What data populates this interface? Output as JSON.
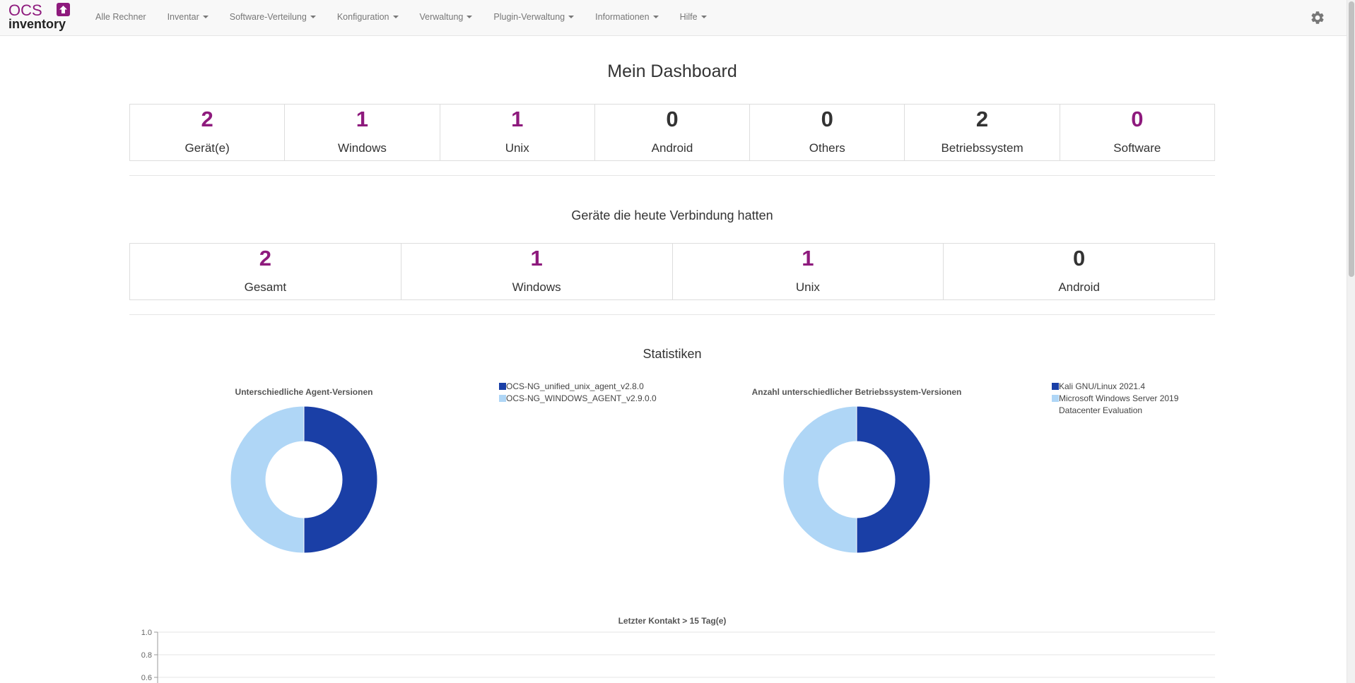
{
  "nav": {
    "logo_ocs": "OCS",
    "logo_inventory": "inventory",
    "items": [
      {
        "label": "Alle Rechner",
        "dropdown": false
      },
      {
        "label": "Inventar",
        "dropdown": true
      },
      {
        "label": "Software-Verteilung",
        "dropdown": true
      },
      {
        "label": "Konfiguration",
        "dropdown": true
      },
      {
        "label": "Verwaltung",
        "dropdown": true
      },
      {
        "label": "Plugin-Verwaltung",
        "dropdown": true
      },
      {
        "label": "Informationen",
        "dropdown": true
      },
      {
        "label": "Hilfe",
        "dropdown": true
      }
    ],
    "settings_icon": "gear-icon"
  },
  "dashboard": {
    "title": "Mein Dashboard",
    "totals": [
      {
        "value": "2",
        "label": "Gerät(e)",
        "color": "#8e1a7d"
      },
      {
        "value": "1",
        "label": "Windows",
        "color": "#8e1a7d"
      },
      {
        "value": "1",
        "label": "Unix",
        "color": "#8e1a7d"
      },
      {
        "value": "0",
        "label": "Android",
        "color": "#333333"
      },
      {
        "value": "0",
        "label": "Others",
        "color": "#333333"
      },
      {
        "value": "2",
        "label": "Betriebssystem",
        "color": "#333333"
      },
      {
        "value": "0",
        "label": "Software",
        "color": "#8e1a7d"
      }
    ],
    "today_title": "Geräte die heute Verbindung hatten",
    "today": [
      {
        "value": "2",
        "label": "Gesamt",
        "color": "#8e1a7d"
      },
      {
        "value": "1",
        "label": "Windows",
        "color": "#8e1a7d"
      },
      {
        "value": "1",
        "label": "Unix",
        "color": "#8e1a7d"
      },
      {
        "value": "0",
        "label": "Android",
        "color": "#333333"
      }
    ],
    "stats_title": "Statistiken"
  },
  "chart_data": [
    {
      "type": "pie",
      "title": "Unterschiedliche Agent-Versionen",
      "categories": [
        "OCS-NG_unified_unix_agent_v2.8.0",
        "OCS-NG_WINDOWS_AGENT_v2.9.0.0"
      ],
      "values": [
        1,
        1
      ],
      "colors": [
        "#1a3fa6",
        "#afd6f6"
      ]
    },
    {
      "type": "pie",
      "title": "Anzahl unterschiedlicher Betriebssystem-Versionen",
      "categories": [
        "Kali GNU/Linux 2021.4",
        "Microsoft Windows Server 2019 Datacenter Evaluation"
      ],
      "values": [
        1,
        1
      ],
      "colors": [
        "#1a3fa6",
        "#afd6f6"
      ]
    },
    {
      "type": "line",
      "title": "Letzter Kontakt > 15 Tag(e)",
      "y_ticks": [
        "1.0",
        "0.8",
        "0.6"
      ],
      "ylim": [
        0,
        1.0
      ],
      "grid": true
    }
  ]
}
